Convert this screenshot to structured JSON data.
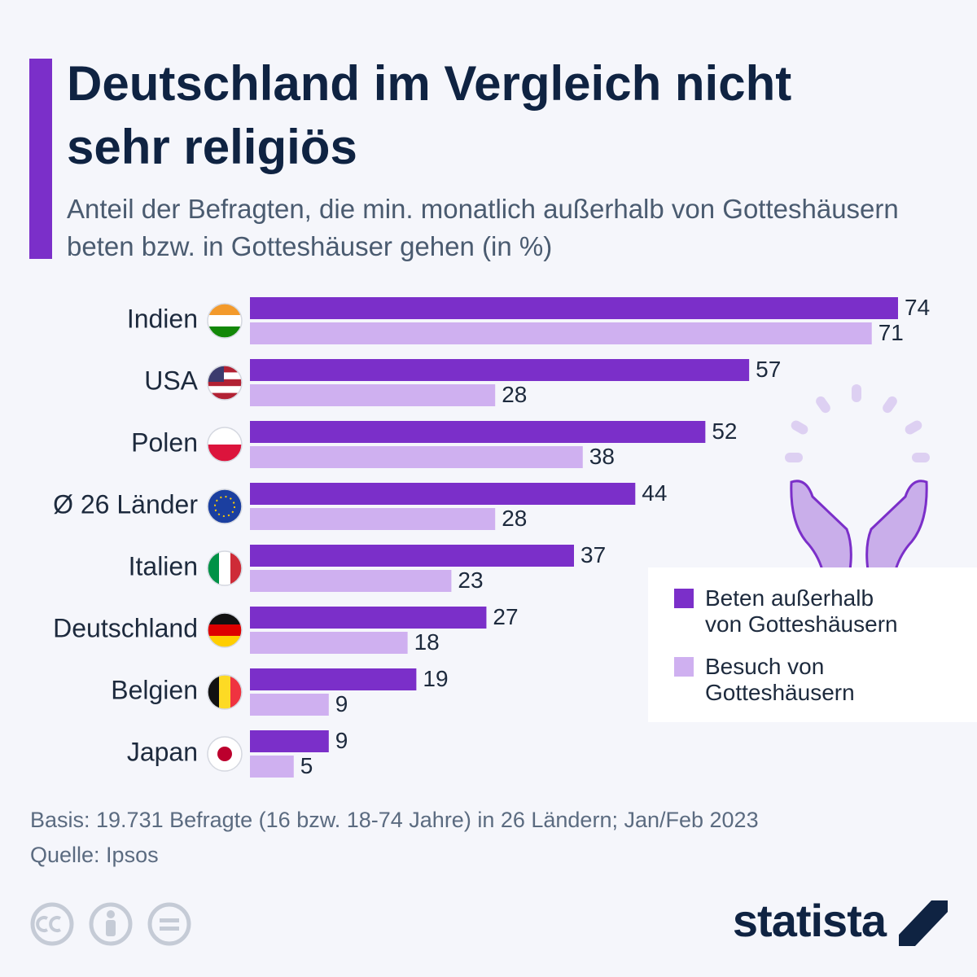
{
  "chart_data": {
    "type": "bar",
    "orientation": "horizontal",
    "title": "Deutschland im Vergleich nicht sehr religiös",
    "subtitle": "Anteil der Befragten, die min. monatlich außerhalb von Gotteshäusern beten bzw. in Gotteshäuser gehen (in %)",
    "categories": [
      "Indien",
      "USA",
      "Polen",
      "Ø 26 Länder",
      "Italien",
      "Deutschland",
      "Belgien",
      "Japan"
    ],
    "series": [
      {
        "name": "Beten außerhalb von Gotteshäusern",
        "color": "#7b2fc9",
        "values": [
          74,
          57,
          52,
          44,
          37,
          27,
          19,
          9
        ]
      },
      {
        "name": "Besuch von Gotteshäusern",
        "color": "#cfb0f0",
        "values": [
          71,
          28,
          38,
          28,
          23,
          18,
          9,
          5
        ]
      }
    ],
    "legend": "bottom-right",
    "note": "Basis: 19.731 Befragte (16 bzw. 18-74 Jahre) in 26 Ländern; Jan/Feb 2023",
    "source": "Quelle: Ipsos",
    "brand": "statista"
  }
}
